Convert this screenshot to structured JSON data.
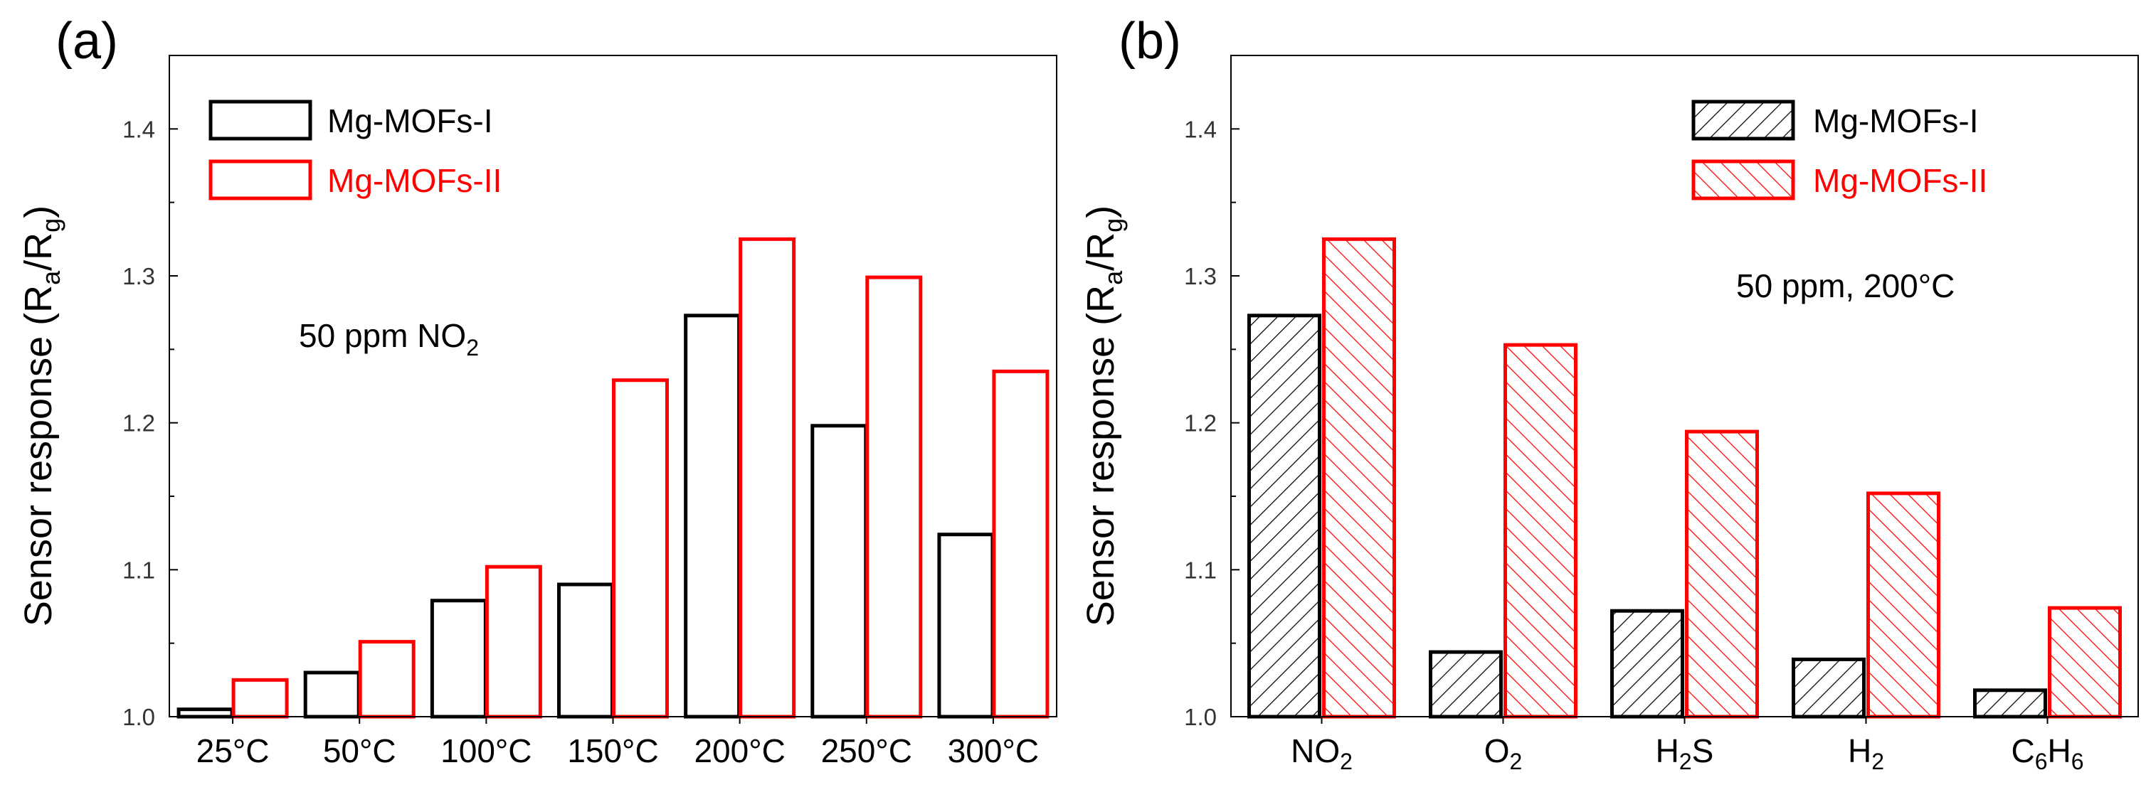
{
  "chart_data": [
    {
      "type": "bar",
      "panel_label": "(a)",
      "ylabel": "Sensor response (Ra/Rg)",
      "ylim": [
        1.0,
        1.45
      ],
      "yticks": [
        "1.0",
        "1.1",
        "1.2",
        "1.3",
        "1.4"
      ],
      "ytick_values": [
        1.0,
        1.1,
        1.2,
        1.3,
        1.4
      ],
      "categories": [
        "25°C",
        "50°C",
        "100°C",
        "150°C",
        "200°C",
        "250°C",
        "300°C"
      ],
      "series": [
        {
          "name": "Mg-MOFs-I",
          "color": "#000000",
          "values": [
            1.005,
            1.03,
            1.079,
            1.09,
            1.273,
            1.198,
            1.124
          ]
        },
        {
          "name": "Mg-MOFs-II",
          "color": "#ff0000",
          "values": [
            1.025,
            1.051,
            1.102,
            1.229,
            1.325,
            1.299,
            1.235
          ]
        }
      ],
      "annotation": "50 ppm NO2",
      "legend_position": "top-left",
      "grid": false
    },
    {
      "type": "bar",
      "panel_label": "(b)",
      "ylabel": "Sensor response (Ra/Rg)",
      "ylim": [
        1.0,
        1.45
      ],
      "yticks": [
        "1.0",
        "1.1",
        "1.2",
        "1.3",
        "1.4"
      ],
      "ytick_values": [
        1.0,
        1.1,
        1.2,
        1.3,
        1.4
      ],
      "categories": [
        "NO2",
        "O2",
        "H2S",
        "H2",
        "C6H6"
      ],
      "series": [
        {
          "name": "Mg-MOFs-I",
          "color": "#000000",
          "hatch": "forward-diagonal",
          "values": [
            1.273,
            1.044,
            1.072,
            1.039,
            1.018
          ]
        },
        {
          "name": "Mg-MOFs-II",
          "color": "#ff0000",
          "hatch": "backward-diagonal",
          "values": [
            1.325,
            1.253,
            1.194,
            1.152,
            1.074
          ]
        }
      ],
      "annotation": "50 ppm, 200°C",
      "legend_position": "top-right",
      "grid": false
    }
  ]
}
